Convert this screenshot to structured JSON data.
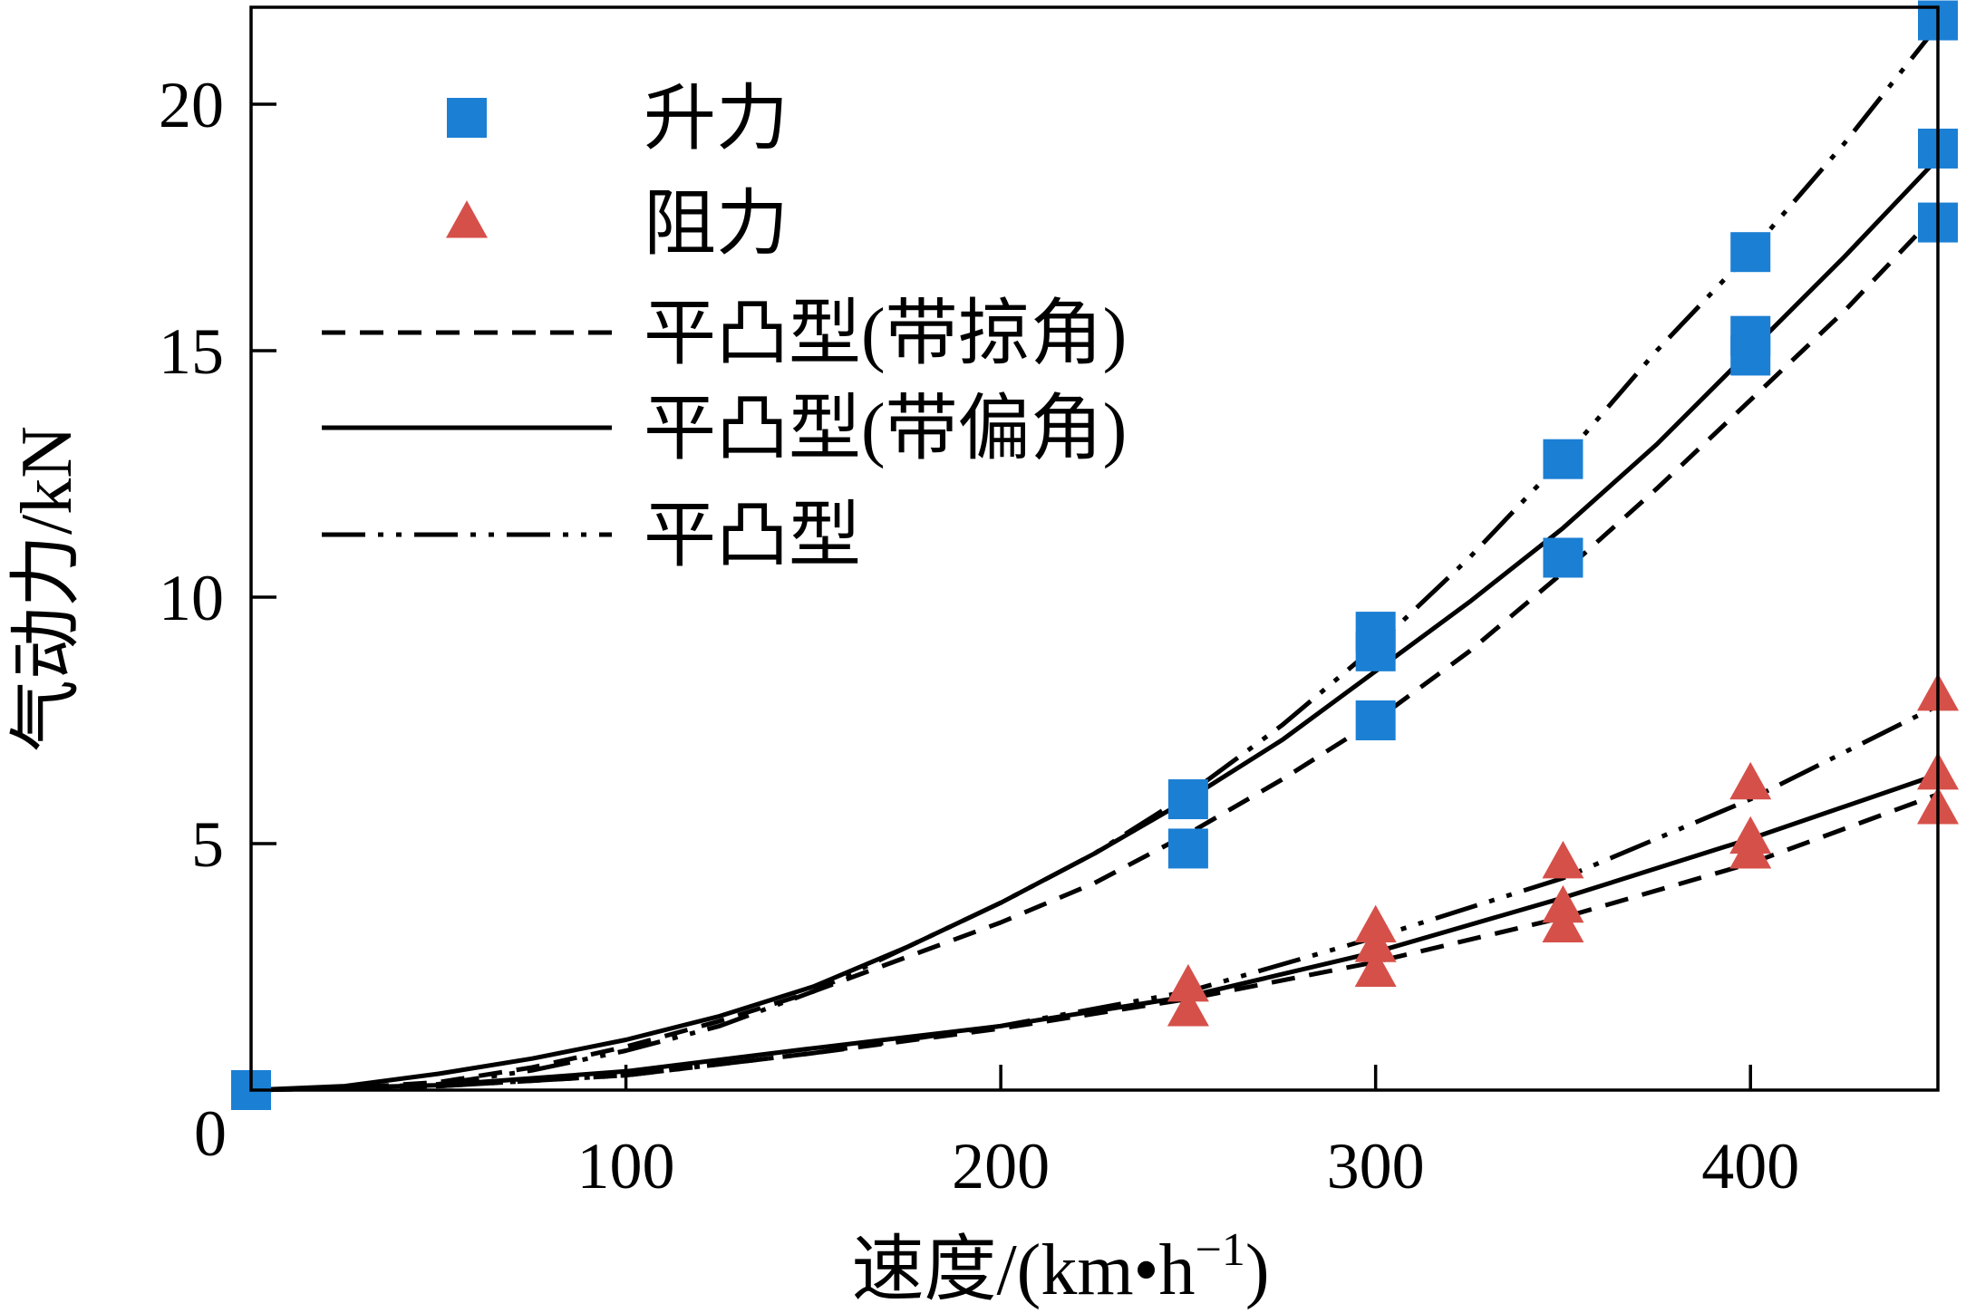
{
  "chart_data": {
    "type": "scatter",
    "title": "",
    "xlabel": "速度/(km•h",
    "xlabel_sup": "−1",
    "xlabel_close": ")",
    "ylabel": "气动力/kN",
    "xlim": [
      0,
      450
    ],
    "ylim": [
      0,
      22
    ],
    "grid": false,
    "legend_position": "top-left",
    "x_ticks": [
      100,
      200,
      300,
      400
    ],
    "x_tick_labels": [
      "100",
      "200",
      "300",
      "400"
    ],
    "y_ticks": [
      5,
      10,
      15,
      20
    ],
    "y_tick_labels": [
      "5",
      "10",
      "15",
      "20"
    ],
    "origin_label": "0",
    "colors": {
      "lift": "#1b7fd4",
      "drag": "#d6504a",
      "line": "#000000"
    },
    "legend": [
      {
        "key": "lift",
        "label": "升力",
        "kind": "square"
      },
      {
        "key": "drag",
        "label": "阻力",
        "kind": "triangle"
      },
      {
        "key": "swept",
        "label": "平凸型(带掠角)",
        "kind": "dashed"
      },
      {
        "key": "yaw",
        "label": "平凸型(带偏角)",
        "kind": "solid"
      },
      {
        "key": "plain",
        "label": "平凸型",
        "kind": "dashdotdot"
      }
    ],
    "scatter_series": [
      {
        "name": "升力",
        "marker": "square",
        "color": "#1b7fd4",
        "x": [
          0,
          250,
          250,
          300,
          300,
          300,
          350,
          350,
          400,
          400,
          400,
          450,
          450,
          450
        ],
        "y": [
          0,
          5.9,
          4.9,
          9.3,
          8.9,
          7.5,
          12.8,
          10.8,
          17.0,
          15.3,
          14.9,
          21.7,
          19.1,
          17.6
        ]
      },
      {
        "name": "阻力",
        "marker": "triangle",
        "color": "#d6504a",
        "x": [
          250,
          250,
          300,
          300,
          300,
          350,
          350,
          350,
          400,
          400,
          400,
          450,
          450,
          450
        ],
        "y": [
          2.1,
          1.6,
          3.3,
          2.9,
          2.4,
          4.6,
          3.7,
          3.3,
          6.2,
          5.1,
          4.8,
          8.0,
          6.4,
          5.7
        ]
      }
    ],
    "line_series": [
      {
        "name": "平凸型(带掠角) 升力",
        "style": "dashed",
        "x": [
          0,
          25,
          50,
          75,
          100,
          125,
          150,
          175,
          200,
          225,
          250,
          275,
          300,
          325,
          350,
          375,
          400,
          425,
          450
        ],
        "y": [
          0,
          0.04,
          0.16,
          0.46,
          0.88,
          1.4,
          2.0,
          2.7,
          3.4,
          4.2,
          5.2,
          6.3,
          7.5,
          8.9,
          10.5,
          12.2,
          14.0,
          15.8,
          17.8
        ]
      },
      {
        "name": "平凸型(带偏角) 升力",
        "style": "solid",
        "x": [
          0,
          25,
          50,
          75,
          100,
          125,
          150,
          175,
          200,
          225,
          250,
          275,
          300,
          325,
          350,
          375,
          400,
          425,
          450
        ],
        "y": [
          0,
          0.08,
          0.33,
          0.64,
          1.02,
          1.5,
          2.1,
          2.9,
          3.8,
          4.8,
          5.9,
          7.1,
          8.5,
          9.9,
          11.4,
          13.1,
          15.0,
          16.9,
          18.9
        ]
      },
      {
        "name": "平凸型 升力",
        "style": "dashdotdot",
        "x": [
          0,
          25,
          50,
          75,
          100,
          125,
          150,
          175,
          200,
          225,
          250,
          275,
          300,
          325,
          350,
          375,
          400,
          425,
          450
        ],
        "y": [
          0,
          0.04,
          0.12,
          0.4,
          0.8,
          1.3,
          2.0,
          2.9,
          3.8,
          4.8,
          6.0,
          7.4,
          9.0,
          10.8,
          12.8,
          15.0,
          17.0,
          19.2,
          21.6
        ]
      },
      {
        "name": "平凸型(带掠角) 阻力",
        "style": "dashed",
        "x": [
          0,
          50,
          100,
          150,
          200,
          250,
          300,
          350,
          400,
          450
        ],
        "y": [
          0,
          0.08,
          0.3,
          0.75,
          1.25,
          1.85,
          2.6,
          3.5,
          4.6,
          6.0
        ]
      },
      {
        "name": "平凸型(带偏角) 阻力",
        "style": "solid",
        "x": [
          0,
          50,
          100,
          150,
          200,
          250,
          300,
          350,
          400,
          450
        ],
        "y": [
          0,
          0.1,
          0.38,
          0.85,
          1.3,
          1.9,
          2.8,
          3.9,
          5.1,
          6.4
        ]
      },
      {
        "name": "平凸型 阻力",
        "style": "dashdotdot",
        "x": [
          0,
          50,
          100,
          150,
          200,
          250,
          300,
          350,
          400,
          450
        ],
        "y": [
          0,
          0.08,
          0.3,
          0.75,
          1.3,
          2.0,
          3.1,
          4.3,
          5.9,
          7.8
        ]
      }
    ]
  }
}
